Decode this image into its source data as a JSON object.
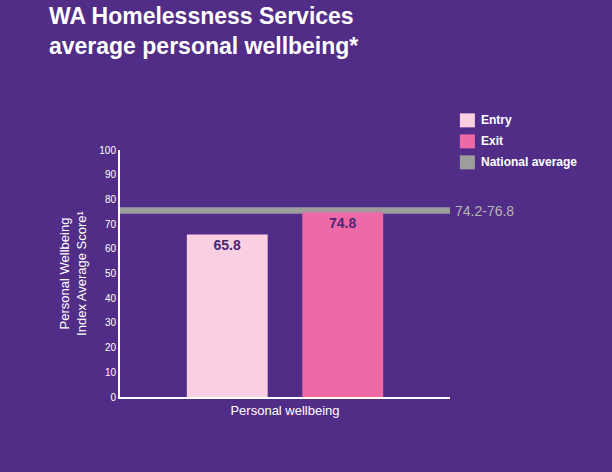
{
  "chart_data": {
    "type": "bar",
    "title": "WA Homelessness Services average personal wellbeing*",
    "y_label": "Personal Wellbeing Index Average Score¹",
    "categories": [
      "Personal wellbeing"
    ],
    "series": [
      {
        "name": "Entry",
        "color": "#f9cfe1",
        "values": [
          65.8
        ]
      },
      {
        "name": "Exit",
        "color": "#ee6aa7",
        "values": [
          74.8
        ]
      }
    ],
    "reference": {
      "name": "National average",
      "color": "#9d9d9d",
      "range": [
        74.2,
        76.8
      ],
      "label": "74.2-76.8"
    },
    "ylim": [
      0,
      100
    ],
    "yticks": [
      0,
      10,
      20,
      30,
      40,
      50,
      60,
      70,
      80,
      90,
      100
    ],
    "data_labels": true,
    "grid": false,
    "legend": "top right"
  }
}
